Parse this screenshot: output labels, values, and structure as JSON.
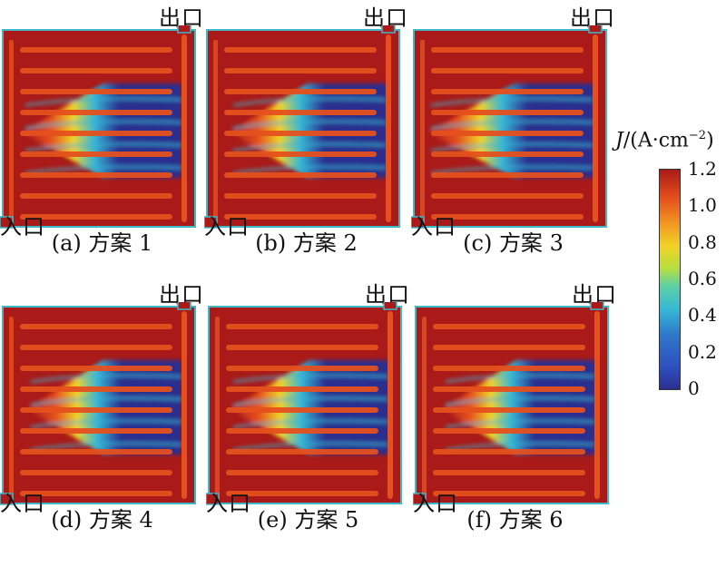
{
  "labels": {
    "outlet": "出口",
    "inlet": "入口"
  },
  "panels": [
    {
      "caption": "(a) 方案 1",
      "variant": 0
    },
    {
      "caption": "(b) 方案 2",
      "variant": 1
    },
    {
      "caption": "(c) 方案 3",
      "variant": 2
    },
    {
      "caption": "(d) 方案 4",
      "variant": 3
    },
    {
      "caption": "(e) 方案 5",
      "variant": 4
    },
    {
      "caption": "(f) 方案 6",
      "variant": 5
    }
  ],
  "colorbar": {
    "title_prefix": "J",
    "title_rest": "/(A·cm",
    "title_sup": "−2",
    "title_close": ")",
    "ticks": [
      "1.2",
      "1.0",
      "0.8",
      "0.6",
      "0.4",
      "0.2",
      "0"
    ],
    "tick_values": [
      1.2,
      1.0,
      0.8,
      0.6,
      0.4,
      0.2,
      0
    ],
    "range": [
      0,
      1.2
    ]
  },
  "colors": {
    "high": "#a91a18",
    "mid_high": "#e5501e",
    "mid": "#f0d326",
    "mid_low": "#35b6d6",
    "low": "#2a2f8e"
  }
}
